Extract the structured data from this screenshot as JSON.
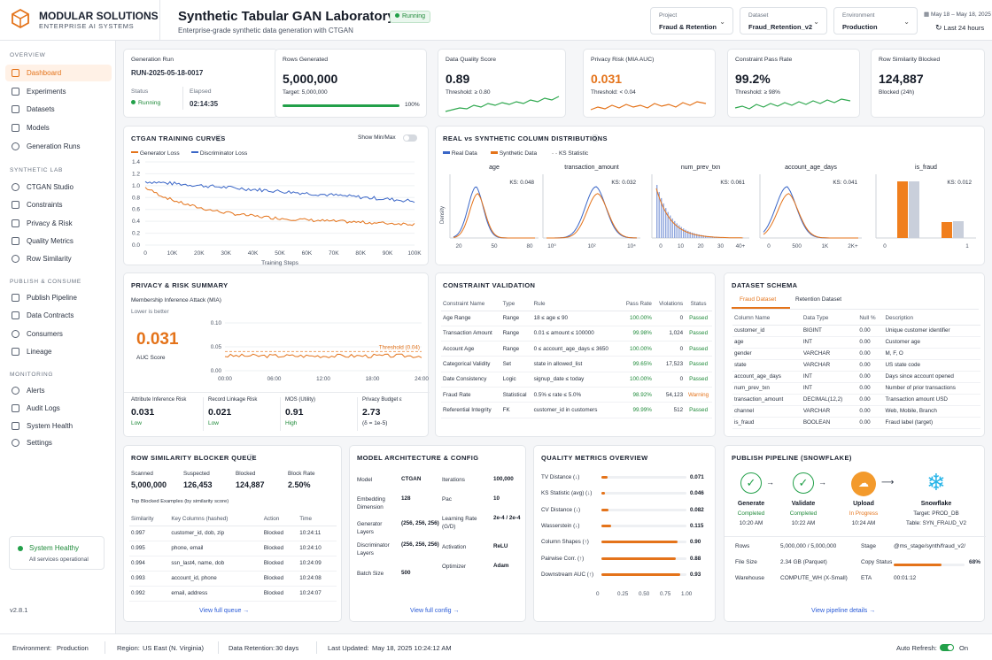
{
  "brand": {
    "name": "MODULAR SOLUTIONS",
    "sub": "ENTERPRISE AI SYSTEMS"
  },
  "page": {
    "title": "Synthetic Tabular GAN Laboratory",
    "subtitle": "Enterprise-grade synthetic data generation with CTGAN",
    "status": "Running"
  },
  "selectors": [
    {
      "label": "Project",
      "value": "Fraud & Retention"
    },
    {
      "label": "Dataset",
      "value": "Fraud_Retention_v2"
    },
    {
      "label": "Environment",
      "value": "Production"
    }
  ],
  "daterange": {
    "dates": "May 18 – May 18, 2025",
    "range": "Last 24 hours"
  },
  "sidebar": {
    "sections": [
      "OVERVIEW",
      "SYNTHETIC LAB",
      "PUBLISH & CONSUME",
      "MONITORING"
    ],
    "overview": [
      "Dashboard",
      "Experiments",
      "Datasets",
      "Models",
      "Generation Runs"
    ],
    "lab": [
      "CTGAN Studio",
      "Constraints",
      "Privacy & Risk",
      "Quality Metrics",
      "Row Similarity"
    ],
    "publish": [
      "Publish Pipeline",
      "Data Contracts",
      "Consumers",
      "Lineage"
    ],
    "monitoring": [
      "Alerts",
      "Audit Logs",
      "System Health",
      "Settings"
    ],
    "health_title": "System Healthy",
    "health_desc": "All services operational",
    "version": "v2.8.1"
  },
  "kpi": {
    "run_label": "Generation Run",
    "run_id": "RUN-2025-05-18-0017",
    "status_label": "Status",
    "status": "Running",
    "elapsed_label": "Elapsed",
    "elapsed": "02:14:35",
    "rows_label": "Rows Generated",
    "rows": "5,000,000",
    "rows_target": "Target: 5,000,000",
    "rows_pct": "100%",
    "rows_progress": 1.0,
    "dq_label": "Data Quality Score",
    "dq": "0.89",
    "dq_thr": "Threshold: ≥ 0.80",
    "pr_label": "Privacy Risk (MIA AUC)",
    "pr": "0.031",
    "pr_thr": "Threshold: < 0.04",
    "cp_label": "Constraint Pass Rate",
    "cp": "99.2%",
    "cp_thr": "Threshold: ≥ 98%",
    "rs_label": "Row Similarity Blocked",
    "rs": "124,887",
    "rs_sub": "Blocked (24h)"
  },
  "training": {
    "title": "CTGAN TRAINING CURVES",
    "toggle": "Show Min/Max",
    "legend": [
      "Generator Loss",
      "Discriminator Loss"
    ],
    "xlabel": "Training Steps",
    "yticks": [
      "1.4",
      "1.2",
      "1.0",
      "0.8",
      "0.6",
      "0.4",
      "0.2",
      "0.0"
    ],
    "xticks": [
      "0",
      "10K",
      "20K",
      "30K",
      "40K",
      "50K",
      "60K",
      "70K",
      "80K",
      "90K",
      "100K"
    ]
  },
  "dist": {
    "title": "REAL vs SYNTHETIC COLUMN DISTRIBUTIONS",
    "legend": [
      "Real Data",
      "Synthetic Data",
      "KS Statistic"
    ],
    "ylabel": "Density",
    "panels": [
      {
        "name": "age",
        "ks": "KS: 0.048",
        "ticks": [
          "20",
          "50",
          "80"
        ]
      },
      {
        "name": "transaction_amount",
        "ks": "KS: 0.032",
        "ticks": [
          "10⁰",
          "10²",
          "10⁴"
        ]
      },
      {
        "name": "num_prev_txn",
        "ks": "KS: 0.061",
        "ticks": [
          "0",
          "10",
          "20",
          "30",
          "40+"
        ]
      },
      {
        "name": "account_age_days",
        "ks": "KS: 0.041",
        "ticks": [
          "0",
          "500",
          "1K",
          "2K+"
        ]
      },
      {
        "name": "is_fraud",
        "ks": "KS: 0.012",
        "ticks": [
          "0",
          "1"
        ]
      }
    ]
  },
  "privacy": {
    "title": "PRIVACY & RISK SUMMARY",
    "mia": "Membership Inference Attack (MIA)",
    "lower": "Lower is better",
    "auc": "0.031",
    "auc_label": "AUC Score",
    "threshold": "Threshold (0.04)",
    "yticks": [
      "0.10",
      "0.05",
      "0.00"
    ],
    "xticks": [
      "00:00",
      "06:00",
      "12:00",
      "18:00",
      "24:00"
    ],
    "metrics": [
      {
        "l": "Attribute Inference Risk",
        "v": "0.031",
        "s": "Low"
      },
      {
        "l": "Record Linkage Risk",
        "v": "0.021",
        "s": "Low"
      },
      {
        "l": "MOS (Utility)",
        "v": "0.91",
        "s": "High"
      },
      {
        "l": "Privacy Budget ε",
        "v": "2.73",
        "s": "(δ = 1e-5)"
      }
    ]
  },
  "constraints": {
    "title": "CONSTRAINT VALIDATION",
    "headers": [
      "Constraint Name",
      "Type",
      "Rule",
      "Pass Rate",
      "Violations",
      "Status"
    ],
    "rows": [
      [
        "Age Range",
        "Range",
        "18 ≤ age ≤ 90",
        "100.00%",
        "0",
        "Passed"
      ],
      [
        "Transaction Amount",
        "Range",
        "0.01 ≤ amount ≤ 100000",
        "99.98%",
        "1,024",
        "Passed"
      ],
      [
        "Account Age",
        "Range",
        "0 ≤ account_age_days ≤ 3650",
        "100.00%",
        "0",
        "Passed"
      ],
      [
        "Categorical Validity",
        "Set",
        "state in allowed_list",
        "99.65%",
        "17,523",
        "Passed"
      ],
      [
        "Date Consistency",
        "Logic",
        "signup_date ≤ today",
        "100.00%",
        "0",
        "Passed"
      ],
      [
        "Fraud Rate",
        "Statistical",
        "0.5% ≤ rate ≤ 5.0%",
        "98.92%",
        "54,123",
        "Warning"
      ],
      [
        "Referential Integrity",
        "FK",
        "customer_id in customers",
        "99.99%",
        "512",
        "Passed"
      ]
    ]
  },
  "schema": {
    "title": "DATASET SCHEMA",
    "tabs": [
      "Fraud Dataset",
      "Retention Dataset"
    ],
    "headers": [
      "Column Name",
      "Data Type",
      "Null %",
      "Description"
    ],
    "rows": [
      [
        "customer_id",
        "BIGINT",
        "0.00",
        "Unique customer identifier"
      ],
      [
        "age",
        "INT",
        "0.00",
        "Customer age"
      ],
      [
        "gender",
        "VARCHAR",
        "0.00",
        "M, F, O"
      ],
      [
        "state",
        "VARCHAR",
        "0.00",
        "US state code"
      ],
      [
        "account_age_days",
        "INT",
        "0.00",
        "Days since account opened"
      ],
      [
        "num_prev_txn",
        "INT",
        "0.00",
        "Number of prior transactions"
      ],
      [
        "transaction_amount",
        "DECIMAL(12,2)",
        "0.00",
        "Transaction amount USD"
      ],
      [
        "channel",
        "VARCHAR",
        "0.00",
        "Web, Mobile, Branch"
      ],
      [
        "is_fraud",
        "BOOLEAN",
        "0.00",
        "Fraud label (target)"
      ]
    ]
  },
  "blocker": {
    "title": "ROW SIMILARITY BLOCKER QUEUE",
    "stats": [
      {
        "l": "Scanned",
        "v": "5,000,000"
      },
      {
        "l": "Suspected",
        "v": "126,453"
      },
      {
        "l": "Blocked",
        "v": "124,887"
      },
      {
        "l": "Block Rate",
        "v": "2.50%"
      }
    ],
    "examples": "Top Blocked Examples (by similarity score)",
    "headers": [
      "Similarity",
      "Key Columns (hashed)",
      "Action",
      "Time"
    ],
    "rows": [
      [
        "0.997",
        "customer_id, dob, zip",
        "Blocked",
        "10:24:11"
      ],
      [
        "0.995",
        "phone, email",
        "Blocked",
        "10:24:10"
      ],
      [
        "0.994",
        "ssn_last4, name, dob",
        "Blocked",
        "10:24:09"
      ],
      [
        "0.993",
        "account_id, phone",
        "Blocked",
        "10:24:08"
      ],
      [
        "0.992",
        "email, address",
        "Blocked",
        "10:24:07"
      ]
    ],
    "link": "View full queue →"
  },
  "arch": {
    "title": "MODEL ARCHITECTURE & CONFIG",
    "left": [
      [
        "Model",
        "CTGAN"
      ],
      [
        "Embedding Dimension",
        "128"
      ],
      [
        "Generator Layers",
        "(256, 256, 256)"
      ],
      [
        "Discriminator Layers",
        "(256, 256, 256)"
      ],
      [
        "Batch Size",
        "500"
      ]
    ],
    "right": [
      [
        "Iterations",
        "100,000"
      ],
      [
        "Pac",
        "10"
      ],
      [
        "Learning Rate (G/D)",
        "2e-4 / 2e-4"
      ],
      [
        "Activation",
        "ReLU"
      ],
      [
        "Optimizer",
        "Adam"
      ]
    ],
    "link": "View full config →"
  },
  "quality": {
    "title": "QUALITY METRICS OVERVIEW",
    "items": [
      {
        "l": "TV Distance (↓)",
        "v": "0.071",
        "f": 0.071
      },
      {
        "l": "KS Statistic (avg) (↓)",
        "v": "0.046",
        "f": 0.046
      },
      {
        "l": "CV Distance (↓)",
        "v": "0.082",
        "f": 0.082
      },
      {
        "l": "Wasserstein (↓)",
        "v": "0.115",
        "f": 0.115
      },
      {
        "l": "Column Shapes (↑)",
        "v": "0.90",
        "f": 0.9
      },
      {
        "l": "Pairwise Corr. (↑)",
        "v": "0.88",
        "f": 0.88
      },
      {
        "l": "Downstream AUC (↑)",
        "v": "0.93",
        "f": 0.93
      }
    ],
    "xticks": [
      "0",
      "0.25",
      "0.50",
      "0.75",
      "1.00"
    ]
  },
  "pipeline": {
    "title": "PUBLISH PIPELINE (SNOWFLAKE)",
    "steps": [
      {
        "n": "Generate",
        "s": "Completed",
        "t": "10:20 AM"
      },
      {
        "n": "Validate",
        "s": "Completed",
        "t": "10:22 AM"
      },
      {
        "n": "Upload",
        "s": "In Progress",
        "t": "10:24 AM"
      },
      {
        "n": "Snowflake",
        "s": "Target: PROD_DB",
        "t": "Table: SYN_FRAUD_V2"
      }
    ],
    "info": [
      [
        "Rows",
        "5,000,000 / 5,000,000"
      ],
      [
        "File Size",
        "2.34 GB (Parquet)"
      ],
      [
        "Warehouse",
        "COMPUTE_WH (X-Small)"
      ]
    ],
    "info2": [
      [
        "Stage",
        "@ms_stage/synth/fraud_v2/"
      ],
      [
        "Copy Status",
        "68%"
      ],
      [
        "ETA",
        "00:01:12"
      ]
    ],
    "copy_progress": 0.68,
    "link": "View pipeline details →"
  },
  "footer": {
    "env_l": "Environment:",
    "env": "Production",
    "reg_l": "Region:",
    "reg": "US East (N. Virginia)",
    "ret_l": "Data Retention:",
    "ret": "30 days",
    "upd_l": "Last Updated:",
    "upd": "May 18, 2025 10:24:12 AM",
    "auto_l": "Auto Refresh:",
    "auto": "On"
  },
  "colors": {
    "accent": "#e4731a",
    "blue": "#3a66c7",
    "green": "#22a049"
  }
}
